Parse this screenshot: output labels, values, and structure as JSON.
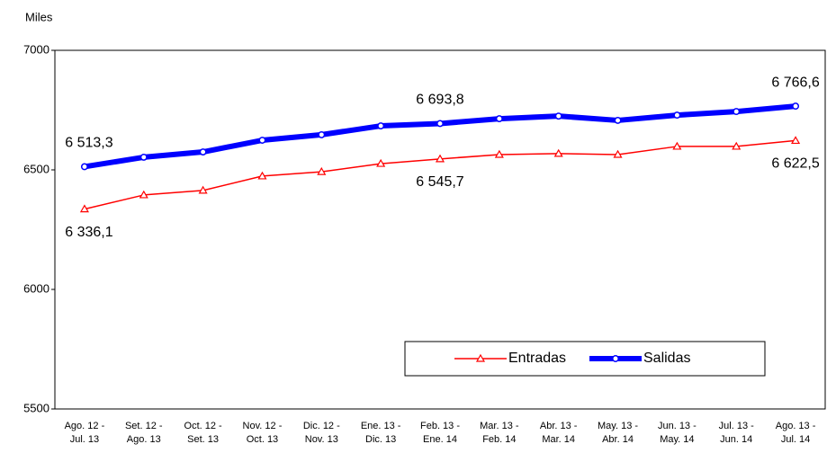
{
  "chart_data": {
    "type": "line",
    "y_label": "Miles",
    "categories": [
      [
        "Ago. 12 -",
        "Jul. 13"
      ],
      [
        "Set. 12 -",
        "Ago. 13"
      ],
      [
        "Oct. 12 -",
        "Set. 13"
      ],
      [
        "Nov. 12 -",
        "Oct. 13"
      ],
      [
        "Dic. 12 -",
        "Nov. 13"
      ],
      [
        "Ene. 13 -",
        "Dic. 13"
      ],
      [
        "Feb. 13 -",
        "Ene. 14"
      ],
      [
        "Mar. 13 -",
        "Feb. 14"
      ],
      [
        "Abr. 13 -",
        "Mar. 14"
      ],
      [
        "May. 13 -",
        "Abr. 14"
      ],
      [
        "Jun. 13 -",
        "May. 14"
      ],
      [
        "Jul. 13 -",
        "Jun. 14"
      ],
      [
        "Ago. 13 -",
        "Jul. 14"
      ]
    ],
    "series": [
      {
        "name": "Entradas",
        "color": "#ff0000",
        "marker": "triangle",
        "values": [
          6336.1,
          6395,
          6414,
          6474,
          6492,
          6526,
          6545.7,
          6564,
          6568,
          6564,
          6598,
          6598,
          6622.5
        ],
        "value_labels": [
          "6 336,1",
          null,
          null,
          null,
          null,
          null,
          "6 545,7",
          null,
          null,
          null,
          null,
          null,
          "6 622,5"
        ]
      },
      {
        "name": "Salidas",
        "color": "#0000ff",
        "marker": "circle",
        "values": [
          6513.3,
          6553,
          6575,
          6624,
          6647,
          6684,
          6693.8,
          6714,
          6725,
          6707,
          6729,
          6744,
          6766.6
        ],
        "value_labels": [
          "6 513,3",
          null,
          null,
          null,
          null,
          null,
          "6 693,8",
          null,
          null,
          null,
          null,
          null,
          "6 766,6"
        ]
      }
    ],
    "ylim": [
      5500,
      7000
    ],
    "yticks": [
      5500,
      6000,
      6500,
      7000
    ],
    "grid": false,
    "legend": "lower right"
  }
}
